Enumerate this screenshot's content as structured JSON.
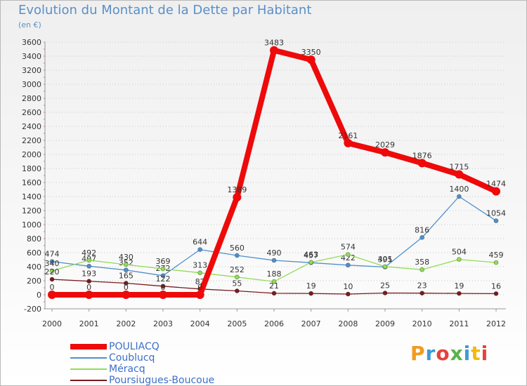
{
  "header": {
    "title": "Evolution du Montant de la Dette par Habitant",
    "unit": "(en €)"
  },
  "logo": {
    "text": "Proxiti",
    "colors": [
      "#f39a1e",
      "#3f9ad6",
      "#e8403a",
      "#56b447",
      "#3f9ad6",
      "#f2b90f",
      "#e8403a"
    ]
  },
  "chart_data": {
    "type": "line",
    "x": [
      2000,
      2001,
      2002,
      2003,
      2004,
      2005,
      2006,
      2007,
      2008,
      2009,
      2010,
      2011,
      2012
    ],
    "ylim": [
      -200,
      3600
    ],
    "ytick_step": 200,
    "grid": "dotted horizontal",
    "legend_position": "bottom-left",
    "series": [
      {
        "name": "Coublucq",
        "color": "#4f90cd",
        "values": [
          474,
          407,
          352,
          272,
          644,
          560,
          490,
          457,
          422,
          395,
          816,
          1400,
          1054
        ]
      },
      {
        "name": "Méracq",
        "color": "#92dc54",
        "values": [
          340,
          492,
          430,
          369,
          313,
          252,
          188,
          463,
          574,
          401,
          358,
          504,
          459
        ]
      },
      {
        "name": "Poursiugues-Boucoue",
        "color": "#7a1b20",
        "values": [
          220,
          193,
          165,
          122,
          82,
          55,
          21,
          19,
          10,
          25,
          23,
          19,
          16
        ]
      },
      {
        "name": "POULIACQ",
        "color": "#ee0a0a",
        "values": [
          0,
          0,
          0,
          0,
          0,
          1389,
          3483,
          3350,
          2161,
          2029,
          1876,
          1715,
          1474
        ]
      }
    ]
  }
}
